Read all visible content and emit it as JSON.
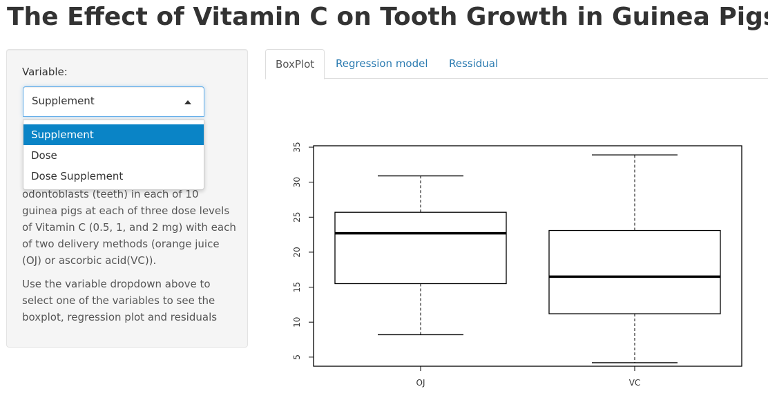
{
  "page": {
    "title": "The Effect of Vitamin C on Tooth Growth in Guinea Pigs"
  },
  "sidebar": {
    "variable_label": "Variable:",
    "select": {
      "value": "Supplement",
      "caret_icon": "caret-up-icon",
      "options": [
        "Supplement",
        "Dose",
        "Dose Supplement"
      ],
      "highlighted_option": "Supplement"
    },
    "description": [
      "odontoblasts (teeth) in each of 10 guinea pigs at each of three dose levels of Vitamin C (0.5, 1, and 2 mg) with each of two delivery methods (orange juice (OJ) or ascorbic acid(VC)).",
      "Use the variable dropdown above to select one of the variables to see the boxplot, regression plot and residuals"
    ]
  },
  "tabs": [
    {
      "label": "BoxPlot",
      "active": true
    },
    {
      "label": "Regression model",
      "active": false
    },
    {
      "label": "Ressidual",
      "active": false
    }
  ],
  "colors": {
    "tab_link": "#2a7ab0",
    "option_highlight": "#0a84c6",
    "select_focus_border": "#66afe9"
  },
  "chart_data": {
    "type": "box",
    "categories": [
      "OJ",
      "VC"
    ],
    "boxes": [
      {
        "category": "OJ",
        "whisker_low": 8.2,
        "q1": 15.5,
        "median": 22.7,
        "q3": 25.7,
        "whisker_high": 30.9
      },
      {
        "category": "VC",
        "whisker_low": 4.2,
        "q1": 11.2,
        "median": 16.5,
        "q3": 23.1,
        "whisker_high": 33.9
      }
    ],
    "y_ticks": [
      "5",
      "10",
      "15",
      "20",
      "25",
      "30",
      "35"
    ],
    "ylim": [
      3.7,
      35.2
    ],
    "title": "",
    "xlabel": "",
    "ylabel": "",
    "grid": false
  }
}
